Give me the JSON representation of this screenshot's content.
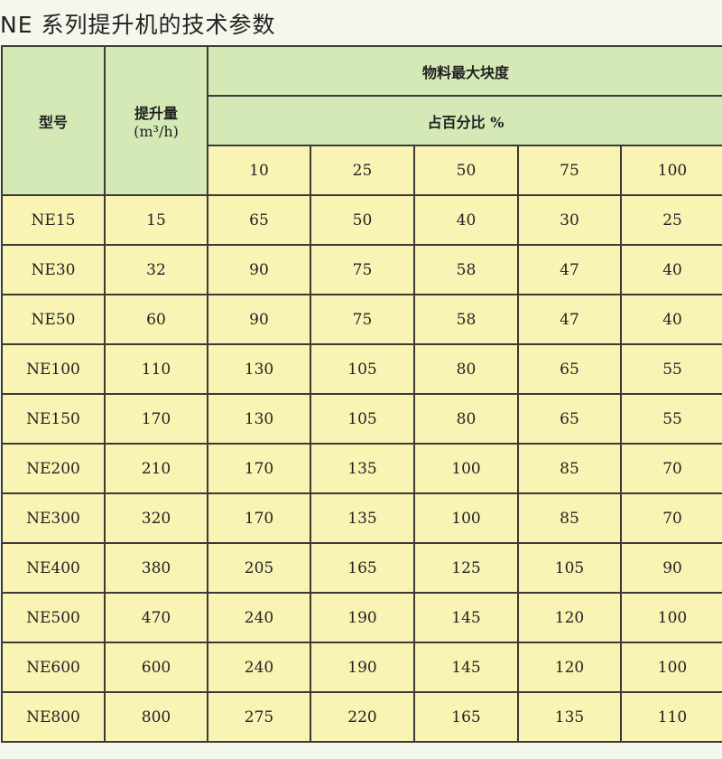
{
  "title": "NE 系列提升机的技术参数",
  "colors": {
    "header_bg": "#d4e9b5",
    "cell_bg": "#f9f4b4",
    "border": "#3a3a3a"
  },
  "header": {
    "model": "型号",
    "capacity": "提升量",
    "capacity_unit": "(m³/h)",
    "max_lump": "物料最大块度",
    "percent": "占百分比 %",
    "percent_columns": [
      "10",
      "25",
      "50",
      "75",
      "100"
    ]
  },
  "rows": [
    {
      "model": "NE15",
      "capacity": "15",
      "values": [
        "65",
        "50",
        "40",
        "30",
        "25"
      ]
    },
    {
      "model": "NE30",
      "capacity": "32",
      "values": [
        "90",
        "75",
        "58",
        "47",
        "40"
      ]
    },
    {
      "model": "NE50",
      "capacity": "60",
      "values": [
        "90",
        "75",
        "58",
        "47",
        "40"
      ]
    },
    {
      "model": "NE100",
      "capacity": "110",
      "values": [
        "130",
        "105",
        "80",
        "65",
        "55"
      ]
    },
    {
      "model": "NE150",
      "capacity": "170",
      "values": [
        "130",
        "105",
        "80",
        "65",
        "55"
      ]
    },
    {
      "model": "NE200",
      "capacity": "210",
      "values": [
        "170",
        "135",
        "100",
        "85",
        "70"
      ]
    },
    {
      "model": "NE300",
      "capacity": "320",
      "values": [
        "170",
        "135",
        "100",
        "85",
        "70"
      ]
    },
    {
      "model": "NE400",
      "capacity": "380",
      "values": [
        "205",
        "165",
        "125",
        "105",
        "90"
      ]
    },
    {
      "model": "NE500",
      "capacity": "470",
      "values": [
        "240",
        "190",
        "145",
        "120",
        "100"
      ]
    },
    {
      "model": "NE600",
      "capacity": "600",
      "values": [
        "240",
        "190",
        "145",
        "120",
        "100"
      ]
    },
    {
      "model": "NE800",
      "capacity": "800",
      "values": [
        "275",
        "220",
        "165",
        "135",
        "110"
      ]
    }
  ]
}
